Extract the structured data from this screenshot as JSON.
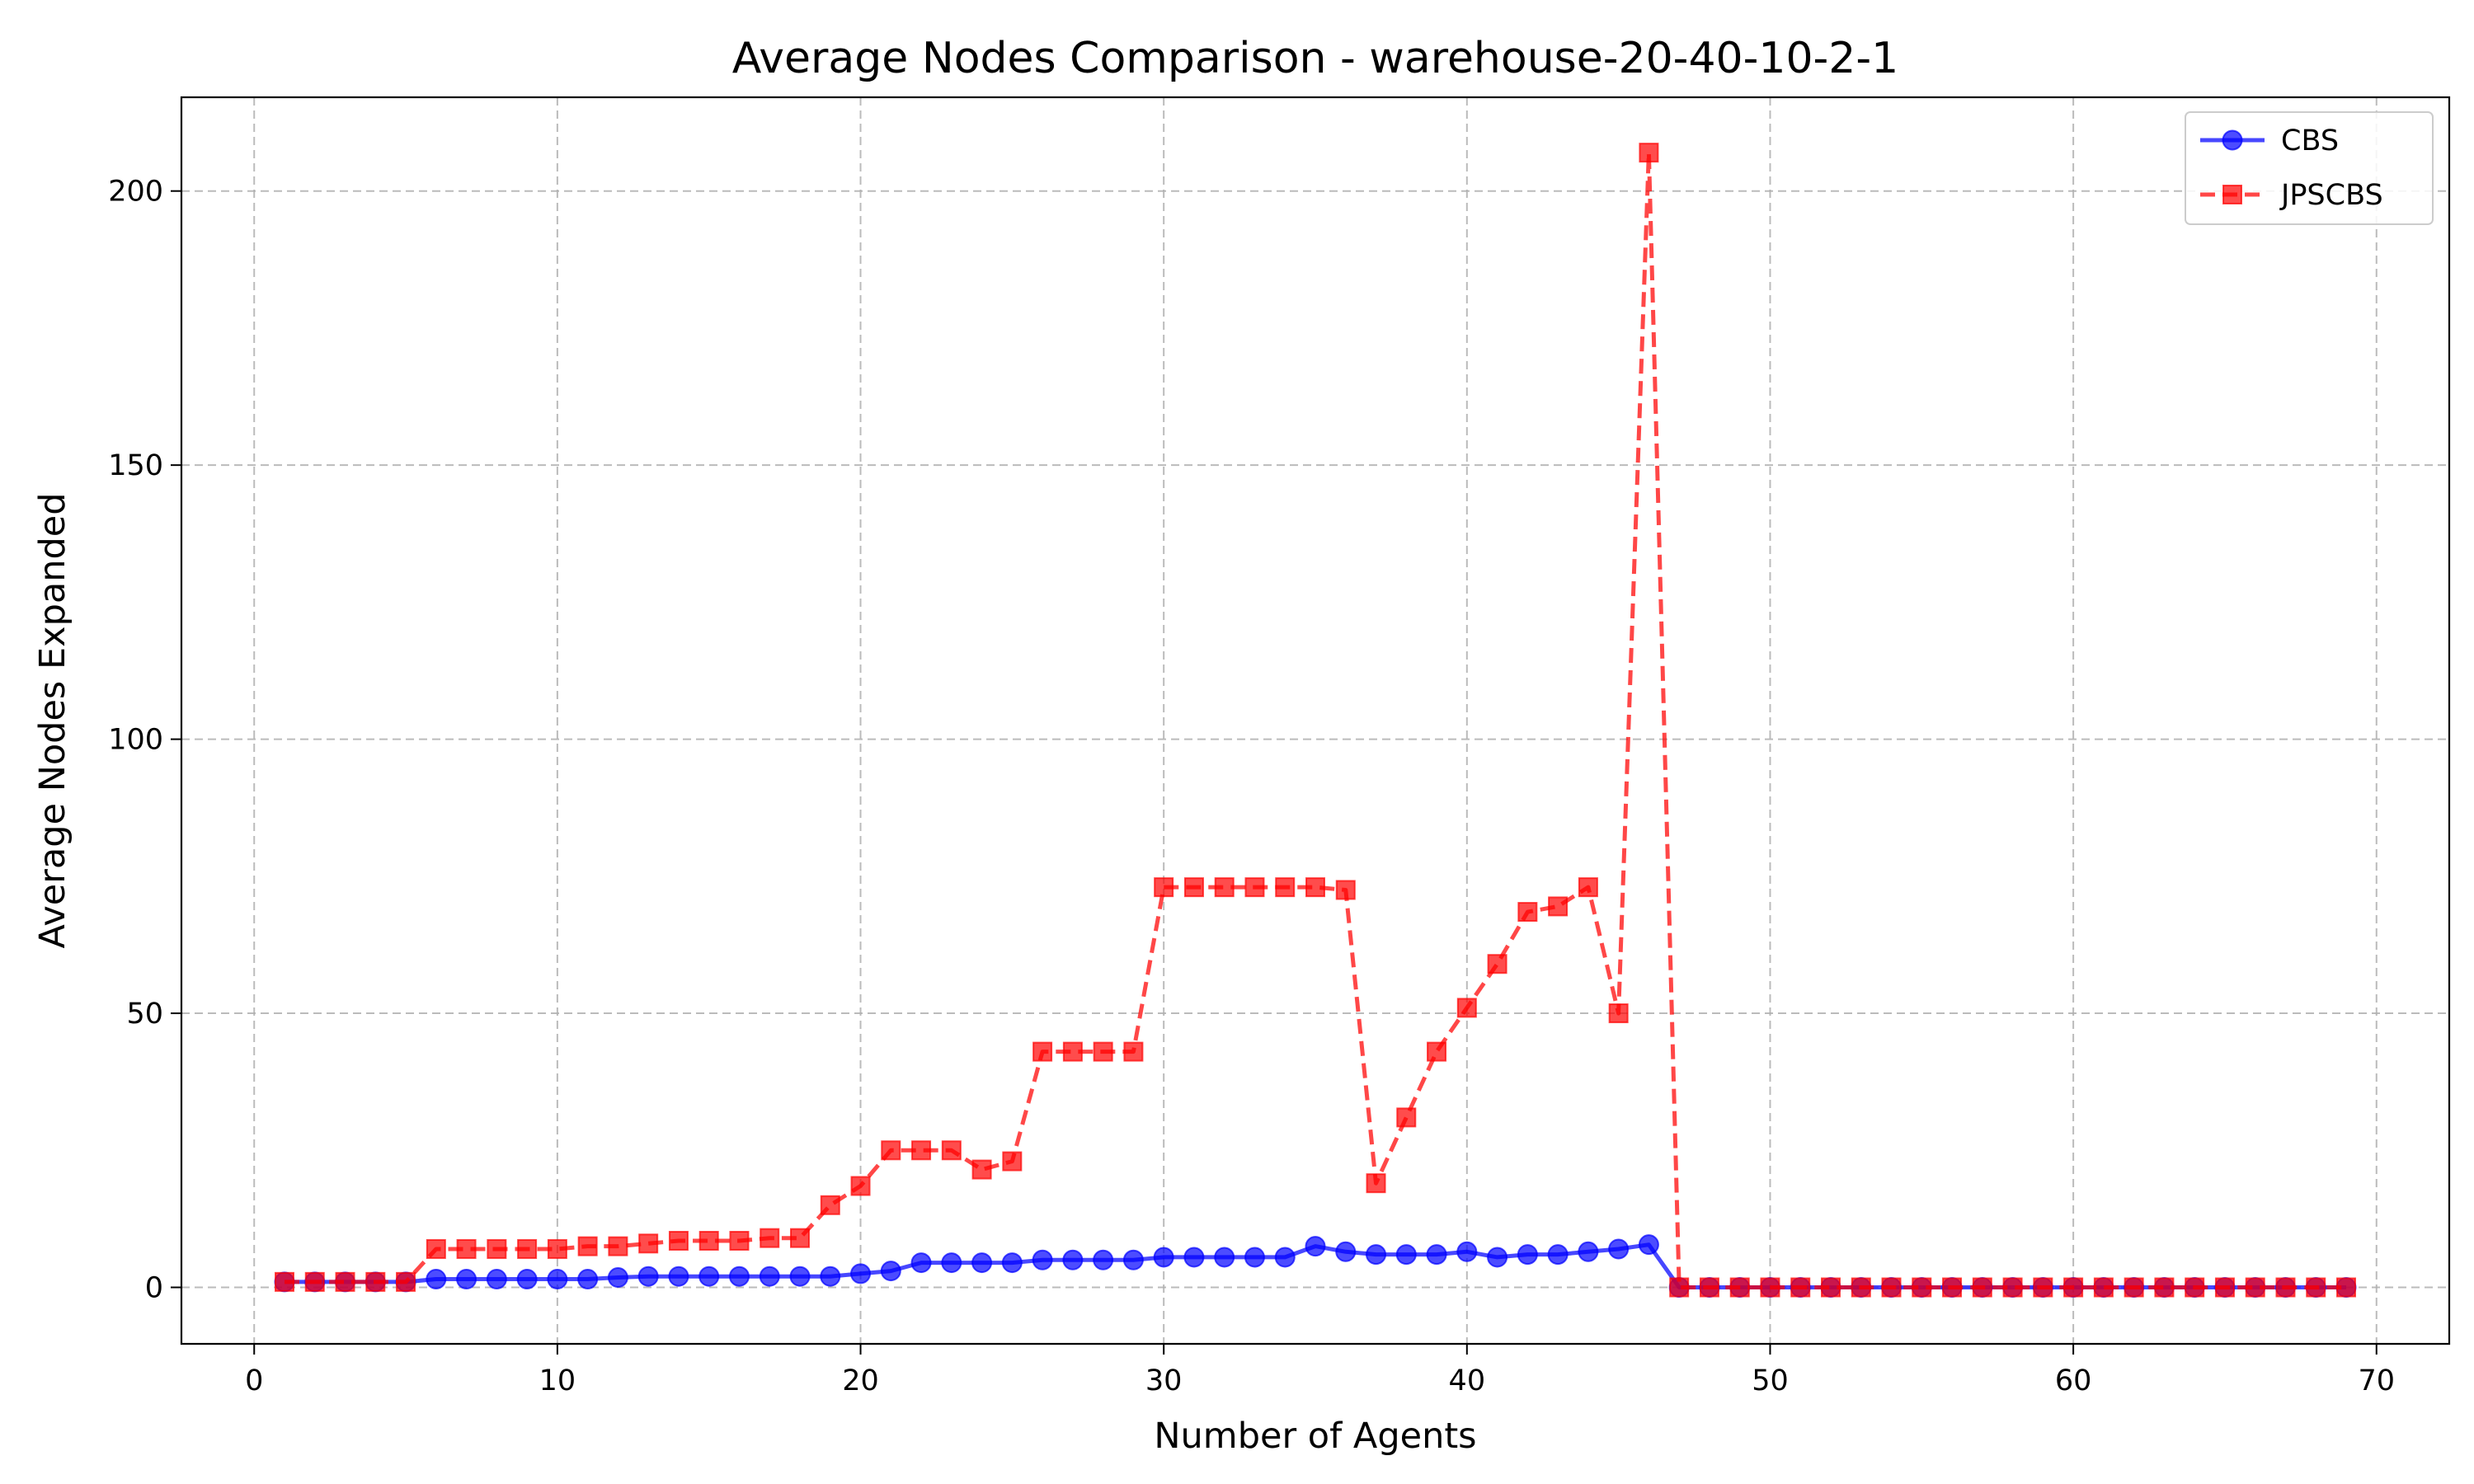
{
  "chart_data": {
    "type": "line",
    "title": "Average Nodes Comparison - warehouse-20-40-10-2-1",
    "xlabel": "Number of Agents",
    "ylabel": "Average Nodes Expanded",
    "xlim": [
      -2.4,
      72.4
    ],
    "ylim": [
      -10.3,
      217.1
    ],
    "xticks": [
      0,
      10,
      20,
      30,
      40,
      50,
      60,
      70
    ],
    "yticks": [
      0,
      50,
      100,
      150,
      200
    ],
    "xtick_labels": [
      "0",
      "10",
      "20",
      "30",
      "40",
      "50",
      "60",
      "70"
    ],
    "ytick_labels": [
      "0",
      "50",
      "100",
      "150",
      "200"
    ],
    "grid": true,
    "grid_style": "dashed",
    "legend_position": "top-right",
    "x": [
      1,
      2,
      3,
      4,
      5,
      6,
      7,
      8,
      9,
      10,
      11,
      12,
      13,
      14,
      15,
      16,
      17,
      18,
      19,
      20,
      21,
      22,
      23,
      24,
      25,
      26,
      27,
      28,
      29,
      30,
      31,
      32,
      33,
      34,
      35,
      36,
      37,
      38,
      39,
      40,
      41,
      42,
      43,
      44,
      45,
      46,
      47,
      48,
      49,
      50,
      51,
      52,
      53,
      54,
      55,
      56,
      57,
      58,
      59,
      60,
      61,
      62,
      63,
      64,
      65,
      66,
      67,
      68,
      69
    ],
    "series": [
      {
        "name": "CBS",
        "color": "#0000ff",
        "linestyle": "solid",
        "marker": "circle",
        "values": [
          1,
          1,
          1,
          1,
          1,
          1.5,
          1.5,
          1.5,
          1.5,
          1.5,
          1.5,
          1.8,
          2,
          2,
          2,
          2,
          2,
          2,
          2,
          2.5,
          3,
          4.5,
          4.5,
          4.5,
          4.5,
          5,
          5,
          5,
          5,
          5.5,
          5.5,
          5.5,
          5.5,
          5.5,
          7.5,
          6.5,
          6,
          6,
          6,
          6.5,
          5.5,
          6,
          6,
          6.5,
          7,
          7.8,
          0,
          0,
          0,
          0,
          0,
          0,
          0,
          0,
          0,
          0,
          0,
          0,
          0,
          0,
          0,
          0,
          0,
          0,
          0,
          0,
          0,
          0,
          0
        ]
      },
      {
        "name": "JPSCBS",
        "color": "#ff0000",
        "linestyle": "dashed",
        "marker": "square",
        "values": [
          1,
          1,
          1,
          1,
          1,
          7,
          7,
          7,
          7,
          7,
          7.5,
          7.5,
          8,
          8.5,
          8.5,
          8.5,
          9,
          9,
          15,
          18.5,
          25,
          25,
          25,
          21.5,
          23,
          43,
          43,
          43,
          43,
          73,
          73,
          73,
          73,
          73,
          73,
          72.5,
          19,
          31,
          43,
          51,
          59,
          68.5,
          69.5,
          73,
          50,
          207,
          0,
          0,
          0,
          0,
          0,
          0,
          0,
          0,
          0,
          0,
          0,
          0,
          0,
          0,
          0,
          0,
          0,
          0,
          0,
          0,
          0,
          0,
          0
        ]
      }
    ]
  }
}
